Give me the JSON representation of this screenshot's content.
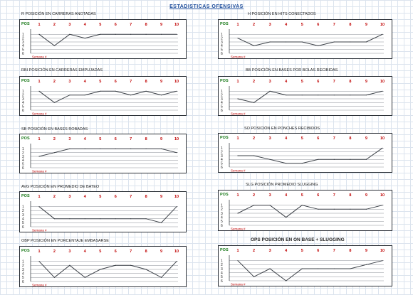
{
  "page_title": "ESTADISTICAS OFENSIVAS",
  "chart_data": [
    {
      "id": "r",
      "type": "line",
      "title": "R  POSICIÓN EN CARRERAS ANOTADAS",
      "ylabel": "POS",
      "xlabel": "Semana #",
      "x": [
        1,
        2,
        3,
        4,
        5,
        6,
        7,
        8,
        9,
        10
      ],
      "values": [
        1,
        4,
        1,
        2,
        1,
        1,
        1,
        1,
        1,
        1
      ],
      "ylim": [
        0,
        6
      ],
      "bold": false
    },
    {
      "id": "h",
      "type": "line",
      "title": "H  POSICIÓN EN HITS CONECTADOS",
      "ylabel": "POS",
      "xlabel": "Semana #",
      "x": [
        1,
        2,
        3,
        4,
        5,
        6,
        7,
        8,
        9,
        10
      ],
      "values": [
        2,
        4,
        3,
        3,
        3,
        4,
        3,
        3,
        3,
        1
      ],
      "ylim": [
        0,
        6
      ],
      "bold": false
    },
    {
      "id": "rbi",
      "type": "line",
      "title": "RBI  POSICIÓN EN CARRERAS EMPUJADAS",
      "ylabel": "POS",
      "xlabel": "Semana #",
      "x": [
        1,
        2,
        3,
        4,
        5,
        6,
        7,
        8,
        9,
        10
      ],
      "values": [
        1,
        4,
        2,
        2,
        1,
        1,
        2,
        1,
        2,
        1
      ],
      "ylim": [
        0,
        6
      ],
      "bold": false
    },
    {
      "id": "bb",
      "type": "line",
      "title": "BB  POSICIÓN EN BASES POR BOLAS RECIBIDAS",
      "ylabel": "POS",
      "xlabel": "Semana #",
      "x": [
        1,
        2,
        3,
        4,
        5,
        6,
        7,
        8,
        9,
        10
      ],
      "values": [
        3,
        4,
        1,
        2,
        2,
        2,
        2,
        2,
        2,
        1
      ],
      "ylim": [
        0,
        6
      ],
      "bold": false
    },
    {
      "id": "sb",
      "type": "line",
      "title": "SB  POSICIÓN EN BASES ROBADAS",
      "ylabel": "POS",
      "xlabel": "Semana #",
      "x": [
        1,
        2,
        3,
        4,
        5,
        6,
        7,
        8,
        9,
        10
      ],
      "values": [
        3,
        2,
        1,
        1,
        1,
        1,
        1,
        1,
        1,
        2
      ],
      "ylim": [
        0,
        6
      ],
      "bold": false
    },
    {
      "id": "so",
      "type": "line",
      "title": "SO  POSICIÓN EN PONCHES RECIBIDOS",
      "ylabel": "POS",
      "xlabel": "Semana #",
      "x": [
        1,
        2,
        3,
        4,
        5,
        6,
        7,
        8,
        9,
        10
      ],
      "values": [
        3,
        3,
        4,
        5,
        5,
        4,
        4,
        4,
        4,
        1
      ],
      "ylim": [
        0,
        6
      ],
      "bold": false
    },
    {
      "id": "avg",
      "type": "line",
      "title": "AVG  POSICIÓN EN PROMEDIO DE BATEO",
      "ylabel": "POS",
      "xlabel": "Semana #",
      "x": [
        1,
        2,
        3,
        4,
        5,
        6,
        7,
        8,
        9,
        10
      ],
      "values": [
        1,
        4,
        4,
        4,
        4,
        4,
        4,
        4,
        5,
        1
      ],
      "ylim": [
        0,
        6
      ],
      "bold": false
    },
    {
      "id": "slg",
      "type": "line",
      "title": "SLG  POSICIÓN PROMEDIO SLUGGING",
      "ylabel": "POS",
      "xlabel": "Semana #",
      "x": [
        1,
        2,
        3,
        4,
        5,
        6,
        7,
        8,
        9,
        10
      ],
      "values": [
        3,
        1,
        1,
        4,
        1,
        2,
        2,
        2,
        2,
        1
      ],
      "ylim": [
        0,
        6
      ],
      "bold": false
    },
    {
      "id": "obp",
      "type": "line",
      "title": "OBP  POSICIÓN EN PORCENTAJE EMBASARSE",
      "ylabel": "POS",
      "xlabel": "Semana #",
      "x": [
        1,
        2,
        3,
        4,
        5,
        6,
        7,
        8,
        9,
        10
      ],
      "values": [
        1,
        5,
        2,
        5,
        3,
        2,
        2,
        3,
        5,
        1
      ],
      "ylim": [
        0,
        6
      ],
      "bold": false
    },
    {
      "id": "ops",
      "type": "line",
      "title": "OPS POSICIÓN EN ON BASE + SLUGGING",
      "ylabel": "POS",
      "xlabel": "Semana #",
      "x": [
        1,
        2,
        3,
        4,
        5,
        6,
        7,
        8,
        9,
        10
      ],
      "values": [
        1,
        5,
        3,
        6,
        3,
        3,
        3,
        3,
        2,
        1
      ],
      "ylim": [
        0,
        6
      ],
      "bold": true
    }
  ],
  "colors": {
    "tick_x": "#c00000",
    "axis_label": "#1a7a1a",
    "line": "#3a3f46",
    "grid": "#8a8f96",
    "frame": "#2a2f36"
  }
}
